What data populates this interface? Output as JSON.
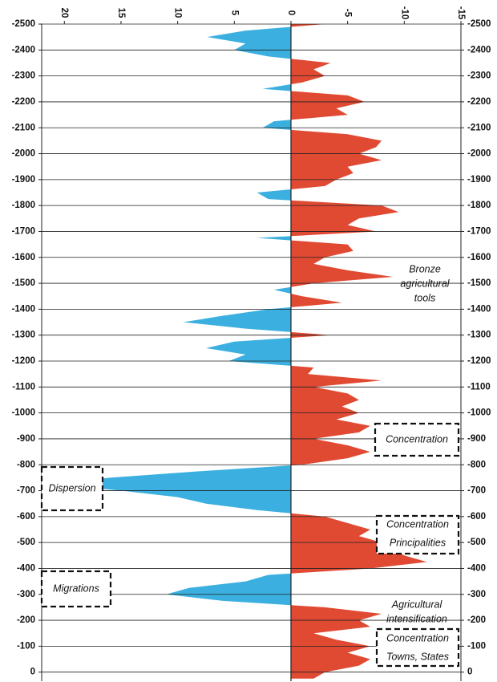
{
  "chart_data": {
    "type": "area",
    "xlim": [
      22,
      -15
    ],
    "xticks": [
      20,
      15,
      10,
      5,
      0,
      -5,
      -10,
      -15
    ],
    "ylim": [
      -2500,
      35
    ],
    "yticks": [
      -2500,
      -2400,
      -2300,
      -2200,
      -2100,
      -2000,
      -1900,
      -1800,
      -1700,
      -1600,
      -1500,
      -1400,
      -1300,
      -1200,
      -1100,
      -1000,
      -900,
      -800,
      -700,
      -600,
      -500,
      -400,
      -300,
      -200,
      -100,
      0
    ],
    "grid": true,
    "positive_color": "#3bb0e0",
    "negative_color": "#e04a33",
    "series": [
      {
        "x": [
          -2500,
          -2475,
          -2450,
          -2425,
          -2400,
          -2375,
          -2350,
          -2325,
          -2300,
          -2275,
          -2250,
          -2225,
          -2200,
          -2175,
          -2150,
          -2125,
          -2100,
          -2075,
          -2050,
          -2025,
          -2000,
          -1975,
          -1950,
          -1925,
          -1900,
          -1875,
          -1850,
          -1825,
          -1800,
          -1775,
          -1750,
          -1725,
          -1700,
          -1675,
          -1650,
          -1625,
          -1600,
          -1575,
          -1550,
          -1525,
          -1500,
          -1475,
          -1450,
          -1425,
          -1400,
          -1375,
          -1350,
          -1325,
          -1300,
          -1275,
          -1250,
          -1225,
          -1200,
          -1175,
          -1150,
          -1125,
          -1100,
          -1075,
          -1050,
          -1025,
          -1000,
          -975,
          -950,
          -925,
          -900,
          -875,
          -850,
          -825,
          -800,
          -775,
          -750,
          -725,
          -700,
          -675,
          -650,
          -625,
          -600,
          -575,
          -550,
          -525,
          -500,
          -475,
          -450,
          -425,
          -400,
          -375,
          -350,
          -325,
          -300,
          -275,
          -250,
          -225,
          -200,
          -175,
          -150,
          -125,
          -100,
          -75,
          -50,
          -25,
          0,
          25
        ],
        "values": [
          -3,
          4,
          7.4,
          4,
          5,
          2,
          -3.5,
          -2,
          -3,
          -1,
          2.5,
          -5,
          -6.5,
          -4,
          -5,
          1.5,
          2.5,
          -5,
          -8,
          -7.5,
          -6,
          -8,
          -5,
          -5.5,
          -4,
          -3,
          3,
          2,
          -8,
          -9.5,
          -6,
          -5,
          -7.5,
          3,
          -5,
          -5.5,
          -3,
          -2,
          -5,
          -9,
          -2,
          1.5,
          -1,
          -4.5,
          2,
          6,
          9.5,
          4,
          -3.5,
          5,
          7.5,
          4,
          5.5,
          -2,
          -1.5,
          -8,
          -2,
          -5,
          -6,
          -4.5,
          -6,
          -4,
          -7,
          -6,
          -2,
          -5,
          -7,
          -5,
          -1,
          8,
          16,
          21,
          15,
          10,
          7.5,
          3,
          -3,
          -5,
          -7,
          -6,
          -8,
          -9,
          -10,
          -12,
          -7,
          2,
          4,
          9,
          11,
          6,
          -3,
          -8,
          -6,
          -7,
          -2,
          -4,
          -7,
          -5,
          -7,
          -6,
          -3,
          -2
        ]
      }
    ],
    "annotations": [
      {
        "lines": [
          "Bronze",
          "agricultural",
          "tools"
        ],
        "boxed": false
      },
      {
        "lines": [
          "Concentration"
        ],
        "boxed": true
      },
      {
        "lines": [
          "Dispersion"
        ],
        "boxed": true
      },
      {
        "lines": [
          "Concentration",
          "Principalities"
        ],
        "boxed": true
      },
      {
        "lines": [
          "Migrations"
        ],
        "boxed": true
      },
      {
        "lines": [
          "Agricultural",
          "intensification"
        ],
        "boxed": false
      },
      {
        "lines": [
          "Concentration",
          "Towns, States"
        ],
        "boxed": true
      }
    ]
  }
}
